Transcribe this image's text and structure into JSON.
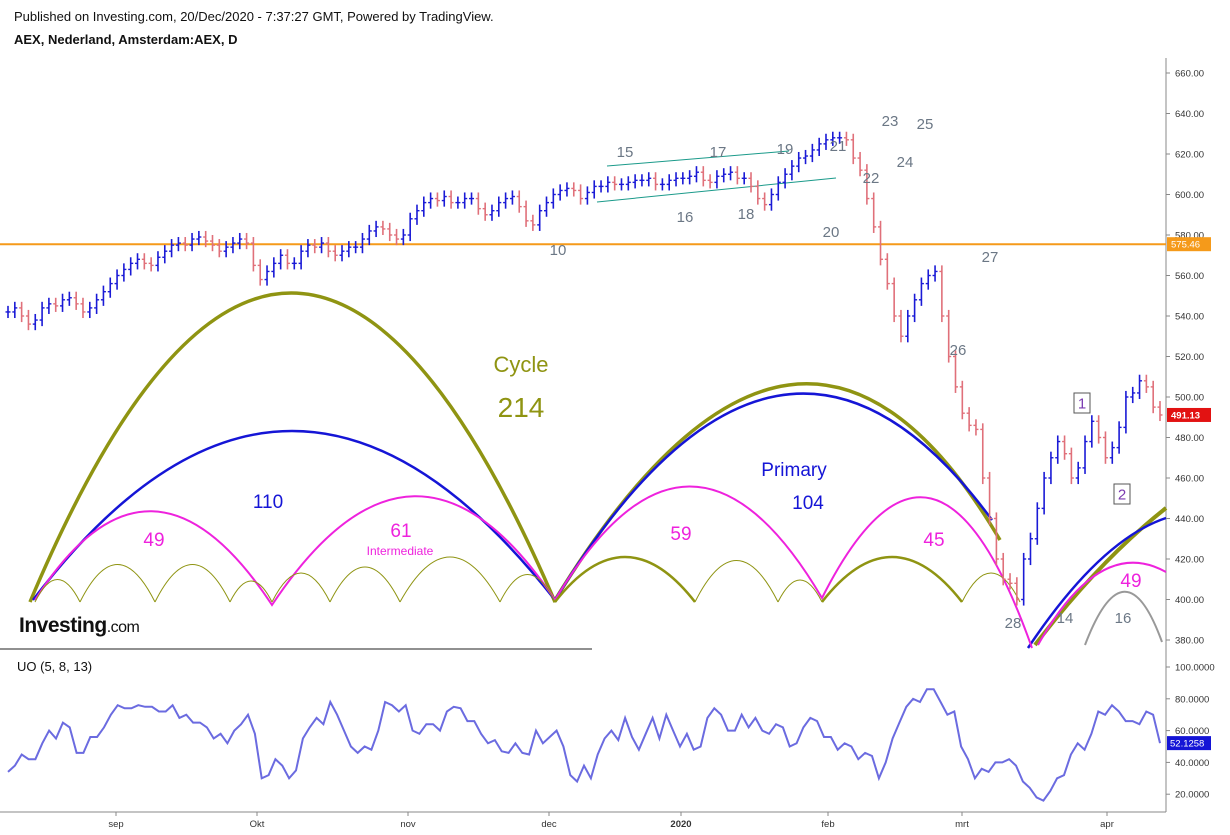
{
  "header": {
    "published": "Published on Investing.com, 20/Dec/2020 - 7:37:27 GMT, Powered by TradingView.",
    "instrument": "AEX, Nederland, Amsterdam:AEX, D"
  },
  "logo": {
    "name": "Investing",
    "suffix": ".com"
  },
  "colors": {
    "up_bar": "#1a1ad6",
    "down_bar": "#e0707a",
    "cycle": "#8f9412",
    "primary": "#1515d6",
    "intermediate": "#ee22dd",
    "horizontal_line": "#f59a1a",
    "channel": "#1a9a8a",
    "uo_line": "#6b6be0",
    "last_price_badge": "#e21212",
    "uo_badge": "#1414d6",
    "label_gray": "#6b7785"
  },
  "chart_data": [
    {
      "type": "bar",
      "title": "AEX, Nederland, Amsterdam:AEX, D",
      "x_ticks": [
        "sep",
        "Okt",
        "nov",
        "dec",
        "2020",
        "feb",
        "mrt",
        "apr"
      ],
      "y_ticks": [
        "660.00",
        "640.00",
        "620.00",
        "600.00",
        "580.00",
        "560.00",
        "540.00",
        "520.00",
        "500.00",
        "480.00",
        "460.00",
        "440.00",
        "420.00",
        "400.00",
        "380.00"
      ],
      "ylim": [
        373,
        663
      ],
      "horizontal_line": {
        "value": 575.46,
        "label": "575.46"
      },
      "last_price": {
        "value": 491.13,
        "label": "491.13"
      },
      "closes": [
        542,
        544,
        540,
        536,
        538,
        544,
        546,
        545,
        548,
        549,
        546,
        542,
        544,
        548,
        552,
        556,
        560,
        563,
        566,
        568,
        566,
        565,
        569,
        572,
        575,
        576,
        575,
        578,
        579,
        577,
        575,
        572,
        574,
        576,
        578,
        576,
        565,
        558,
        562,
        566,
        570,
        566,
        566,
        572,
        575,
        574,
        576,
        572,
        570,
        572,
        574,
        574,
        578,
        582,
        584,
        583,
        580,
        578,
        580,
        588,
        592,
        596,
        598,
        597,
        599,
        596,
        596,
        598,
        598,
        593,
        590,
        592,
        596,
        598,
        599,
        594,
        587,
        585,
        592,
        596,
        600,
        602,
        603,
        602,
        598,
        601,
        604,
        604,
        606,
        605,
        605,
        606,
        607,
        607,
        608,
        605,
        605,
        607,
        608,
        608,
        609,
        611,
        607,
        606,
        609,
        610,
        611,
        608,
        608,
        604,
        598,
        595,
        600,
        606,
        610,
        614,
        618,
        619,
        622,
        625,
        627,
        628,
        628,
        627,
        618,
        612,
        598,
        584,
        568,
        556,
        540,
        530,
        540,
        548,
        556,
        560,
        562,
        540,
        520,
        505,
        492,
        486,
        484,
        460,
        440,
        420,
        410,
        408,
        400,
        420,
        430,
        445,
        460,
        470,
        478,
        472,
        460,
        465,
        478,
        488,
        480,
        470,
        475,
        485,
        500,
        502,
        508,
        505,
        495,
        491.13
      ],
      "cycle_labels": [
        "Cycle",
        "214"
      ],
      "primary_labels": [
        "Primary",
        "110",
        "104"
      ],
      "intermediate_labels": [
        "Intermediate",
        "49",
        "61",
        "59",
        "45",
        "49"
      ],
      "wave_labels": [
        "15",
        "17",
        "19",
        "21",
        "23",
        "25",
        "22",
        "24",
        "16",
        "18",
        "20",
        "10",
        "27",
        "26",
        "28",
        "14",
        "16"
      ],
      "boxed_labels": [
        "1",
        "2"
      ]
    },
    {
      "type": "line",
      "title": "UO (5, 8, 13)",
      "y_ticks": [
        "100.0000",
        "80.0000",
        "60.0000",
        "40.0000",
        "20.0000"
      ],
      "ylim": [
        13,
        103
      ],
      "last_value": {
        "value": 52.1258,
        "label": "52.1258"
      },
      "values": [
        34,
        38,
        45,
        42,
        42,
        52,
        60,
        55,
        65,
        62,
        46,
        46,
        56,
        56,
        62,
        70,
        76,
        74,
        74,
        76,
        75,
        75,
        72,
        72,
        76,
        68,
        70,
        65,
        65,
        62,
        55,
        58,
        52,
        60,
        64,
        70,
        58,
        30,
        32,
        42,
        38,
        30,
        35,
        55,
        62,
        68,
        64,
        78,
        70,
        60,
        50,
        46,
        50,
        48,
        60,
        78,
        76,
        72,
        76,
        60,
        58,
        64,
        64,
        60,
        72,
        75,
        74,
        66,
        66,
        58,
        52,
        54,
        47,
        46,
        52,
        46,
        45,
        60,
        52,
        56,
        60,
        50,
        32,
        28,
        38,
        30,
        45,
        55,
        60,
        54,
        68,
        56,
        48,
        58,
        68,
        55,
        70,
        60,
        50,
        58,
        48,
        50,
        68,
        74,
        70,
        60,
        60,
        70,
        62,
        68,
        60,
        58,
        64,
        62,
        50,
        52,
        62,
        68,
        66,
        56,
        56,
        48,
        52,
        50,
        42,
        46,
        44,
        30,
        40,
        55,
        65,
        75,
        80,
        78,
        86,
        86,
        78,
        70,
        72,
        50,
        42,
        30,
        36,
        34,
        40,
        40,
        42,
        38,
        28,
        24,
        18,
        16,
        22,
        30,
        32,
        45,
        52,
        48,
        58,
        72,
        70,
        76,
        72,
        66,
        66,
        64,
        72,
        70,
        52.1258
      ]
    }
  ]
}
